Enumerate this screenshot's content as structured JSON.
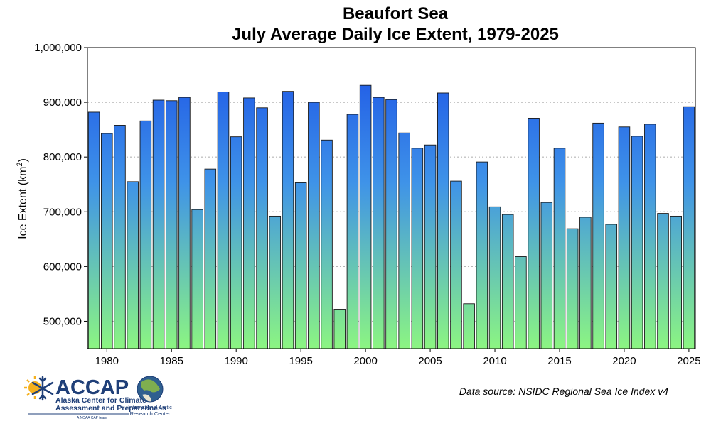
{
  "chart_data": {
    "type": "bar",
    "title_line1": "Beaufort Sea",
    "title_line2": "July Average Daily Ice Extent, 1979-2025",
    "ylabel_main": "Ice Extent (km",
    "ylabel_sup": "2",
    "ylabel_end": ")",
    "xlabel": "",
    "ylim": [
      450000,
      1000000
    ],
    "yticks": [
      500000,
      600000,
      700000,
      800000,
      900000,
      1000000
    ],
    "ytick_labels": [
      "500,000",
      "600,000",
      "700,000",
      "800,000",
      "900,000",
      "1,000,000"
    ],
    "xticks": [
      1980,
      1985,
      1990,
      1995,
      2000,
      2005,
      2010,
      2015,
      2020,
      2025
    ],
    "grid": "horizontal dotted",
    "gradient": {
      "top": "#1a4fe6",
      "bottom": "#8cf582"
    },
    "years": [
      1979,
      1980,
      1981,
      1982,
      1983,
      1984,
      1985,
      1986,
      1987,
      1988,
      1989,
      1990,
      1991,
      1992,
      1993,
      1994,
      1995,
      1996,
      1997,
      1998,
      1999,
      2000,
      2001,
      2002,
      2003,
      2004,
      2005,
      2006,
      2007,
      2008,
      2009,
      2010,
      2011,
      2012,
      2013,
      2014,
      2015,
      2016,
      2017,
      2018,
      2019,
      2020,
      2021,
      2022,
      2023,
      2024,
      2025
    ],
    "values": [
      882000,
      843000,
      858000,
      755000,
      866000,
      904000,
      903000,
      909000,
      704000,
      778000,
      919000,
      837000,
      908000,
      890000,
      692000,
      920000,
      753000,
      900000,
      831000,
      522000,
      878000,
      931000,
      909000,
      905000,
      844000,
      816000,
      822000,
      917000,
      756000,
      532000,
      791000,
      709000,
      695000,
      618000,
      871000,
      717000,
      816000,
      669000,
      690000,
      862000,
      677000,
      855000,
      838000,
      860000,
      697000,
      692000,
      892000
    ]
  },
  "source_note": "Data source: NSIDC Regional Sea Ice Index v4",
  "logos": {
    "accap_name": "ACCAP",
    "accap_line1": "Alaska Center for Climate",
    "accap_line2": "Assessment and Preparedness",
    "accap_tagline": "A NOAA CAP team",
    "iarc_line1": "International Arctic",
    "iarc_line2": "Research Center"
  }
}
